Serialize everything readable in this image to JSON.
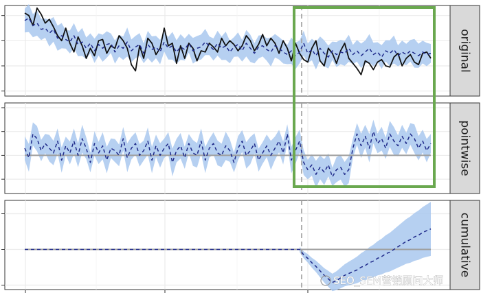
{
  "chart_data": {
    "type": "line",
    "panels": [
      {
        "strip_label": "original",
        "n_points": 100,
        "intervention_index": 67,
        "ylim": [
          -1.2,
          2.4
        ],
        "y_ticks": [
          -1,
          0,
          1,
          2
        ],
        "series": [
          {
            "style": "solid",
            "color": "#111111",
            "values": [
              2.1,
              2.0,
              1.6,
              2.3,
              2.05,
              1.7,
              1.85,
              1.55,
              1.2,
              1.0,
              1.5,
              0.9,
              0.55,
              1.15,
              0.8,
              0.3,
              0.7,
              0.4,
              1.0,
              1.05,
              0.5,
              0.8,
              0.7,
              1.2,
              1.0,
              0.7,
              0.05,
              -0.2,
              0.8,
              0.3,
              1.1,
              0.9,
              0.45,
              0.7,
              1.5,
              0.8,
              0.9,
              0.1,
              0.8,
              0.3,
              0.9,
              0.7,
              0.2,
              0.6,
              0.55,
              0.9,
              0.75,
              0.55,
              1.1,
              0.8,
              1.0,
              0.85,
              0.6,
              0.8,
              1.2,
              1.0,
              0.6,
              0.85,
              1.25,
              0.8,
              1.1,
              0.9,
              0.5,
              1.0,
              0.7,
              0.2,
              0.9,
              0.5,
              0.25,
              0.15,
              0.7,
              1.0,
              0.2,
              0.0,
              0.7,
              0.5,
              0.1,
              0.6,
              0.9,
              0.3,
              0.1,
              -0.1,
              -0.35,
              0.2,
              0.1,
              -0.15,
              0.15,
              0.25,
              0.0,
              -0.05,
              0.35,
              0.5,
              0.0,
              0.3,
              0.45,
              0.15,
              0.05,
              0.5,
              0.55,
              0.3
            ]
          },
          {
            "style": "dashed",
            "color": "#1f2a8a",
            "values": [
              1.8,
              1.9,
              1.6,
              1.7,
              1.45,
              1.5,
              1.3,
              1.45,
              1.1,
              1.2,
              1.05,
              0.95,
              1.2,
              0.85,
              0.95,
              0.7,
              0.9,
              0.6,
              0.85,
              0.7,
              0.85,
              0.9,
              0.55,
              0.8,
              0.7,
              0.95,
              0.6,
              0.75,
              0.85,
              0.5,
              0.85,
              0.65,
              0.75,
              0.55,
              0.95,
              0.7,
              0.8,
              0.55,
              0.75,
              0.65,
              0.9,
              0.6,
              0.7,
              0.75,
              0.95,
              0.8,
              0.65,
              0.9,
              0.7,
              0.8,
              0.55,
              0.75,
              0.85,
              0.6,
              0.9,
              0.7,
              0.5,
              0.75,
              0.8,
              0.65,
              0.55,
              0.8,
              0.7,
              0.55,
              0.45,
              0.6,
              0.4,
              0.55,
              0.9,
              0.5,
              0.65,
              0.4,
              0.7,
              0.5,
              0.35,
              0.6,
              0.45,
              0.55,
              0.5,
              0.7,
              0.45,
              0.6,
              0.4,
              0.55,
              0.7,
              0.45,
              0.55,
              0.35,
              0.6,
              0.5,
              0.65,
              0.4,
              0.55,
              0.45,
              0.6,
              0.5,
              0.4,
              0.55,
              0.45,
              0.5
            ]
          }
        ]
      },
      {
        "strip_label": "pointwise",
        "n_points": 100,
        "intervention_index": 67,
        "ylim": [
          -1.6,
          2.2
        ],
        "y_ticks": [
          -1,
          0,
          1,
          2
        ],
        "hline": 0,
        "series": [
          {
            "style": "dashed",
            "color": "#1f2a8a",
            "values": [
              0.3,
              -0.1,
              0.9,
              0.7,
              0.2,
              0.5,
              0.3,
              0.1,
              0.6,
              -0.2,
              0.4,
              0.1,
              0.6,
              0.0,
              0.7,
              0.3,
              -0.3,
              0.5,
              0.1,
              0.4,
              -0.2,
              0.3,
              0.2,
              0.0,
              0.7,
              -0.1,
              0.3,
              0.5,
              0.0,
              0.2,
              0.6,
              -0.2,
              0.4,
              0.0,
              0.3,
              0.5,
              -0.3,
              0.2,
              0.4,
              -0.1,
              0.5,
              0.1,
              0.0,
              0.6,
              -0.2,
              0.3,
              0.5,
              0.1,
              0.0,
              0.4,
              0.2,
              -0.3,
              0.3,
              0.6,
              0.0,
              0.2,
              0.5,
              -0.2,
              0.1,
              0.4,
              0.0,
              0.3,
              0.6,
              0.1,
              0.9,
              -0.2,
              0.2,
              0.6,
              -0.3,
              -0.6,
              -0.4,
              -0.8,
              -0.5,
              -0.7,
              -0.4,
              -0.9,
              -0.6,
              -0.5,
              -0.8,
              -0.6,
              0.3,
              0.9,
              0.4,
              0.8,
              0.3,
              1.0,
              0.5,
              0.7,
              0.3,
              0.9,
              0.6,
              0.4,
              0.8,
              0.5,
              0.9,
              0.7,
              0.3,
              0.6,
              0.2,
              0.5
            ]
          }
        ]
      },
      {
        "strip_label": "cumulative",
        "n_points": 100,
        "intervention_index": 67,
        "ylim": [
          -4.5,
          5.5
        ],
        "y_ticks": [
          -4,
          0,
          4
        ],
        "hline": 0,
        "band_starts_at": 67,
        "series": [
          {
            "style": "dashed",
            "color": "#1f2a8a",
            "values": [
              0,
              0,
              0,
              0,
              0,
              0,
              0,
              0,
              0,
              0,
              0,
              0,
              0,
              0,
              0,
              0,
              0,
              0,
              0,
              0,
              0,
              0,
              0,
              0,
              0,
              0,
              0,
              0,
              0,
              0,
              0,
              0,
              0,
              0,
              0,
              0,
              0,
              0,
              0,
              0,
              0,
              0,
              0,
              0,
              0,
              0,
              0,
              0,
              0,
              0,
              0,
              0,
              0,
              0,
              0,
              0,
              0,
              0,
              0,
              0,
              0,
              0,
              0,
              0,
              0,
              0,
              0,
              0,
              -0.6,
              -1.0,
              -1.5,
              -1.9,
              -2.4,
              -2.9,
              -3.3,
              -3.7,
              -3.5,
              -3.2,
              -2.9,
              -2.7,
              -2.5,
              -2.3,
              -2.0,
              -1.8,
              -1.5,
              -1.3,
              -1.0,
              -0.8,
              -0.5,
              -0.3,
              0.0,
              0.3,
              0.6,
              0.9,
              1.1,
              1.4,
              1.6,
              1.9,
              2.1,
              2.3
            ]
          }
        ]
      }
    ],
    "band_color": "#a9c8ee",
    "zero_line_color": "#9e9e9e",
    "intervention_line_color": "#9e9e9e",
    "highlight_box_color": "#6aa84f",
    "highlight_range": [
      67,
      99
    ],
    "watermark": "SEO_SEM营销顾问大师"
  }
}
